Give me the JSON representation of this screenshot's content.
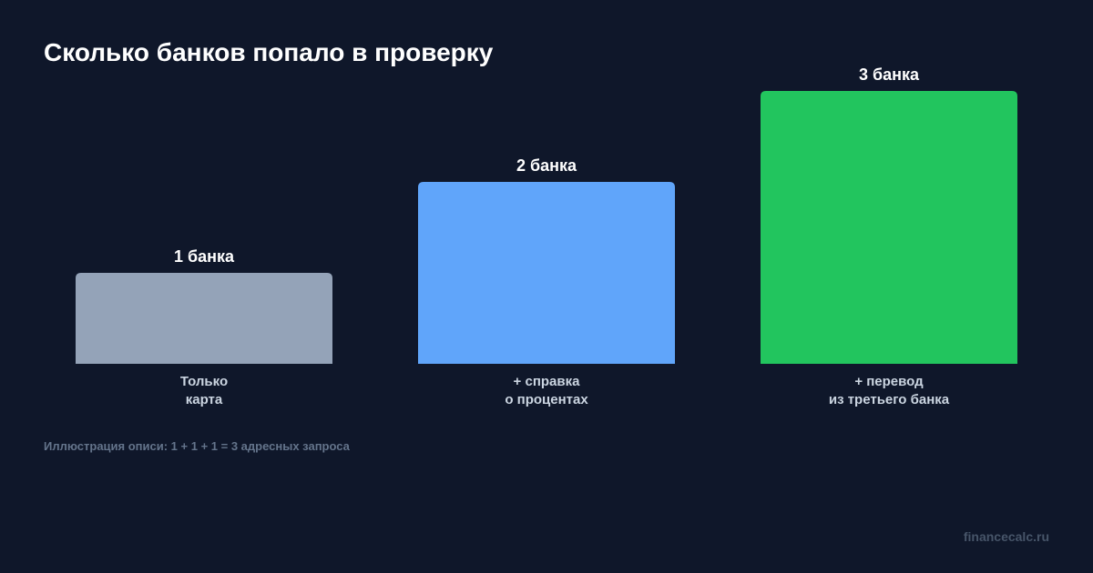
{
  "chart_data": {
    "type": "bar",
    "title": "Сколько банков попало в проверку",
    "categories": [
      [
        "Только",
        "карта"
      ],
      [
        "+ справка",
        "о процентах"
      ],
      [
        "+ перевод",
        "из третьего банка"
      ]
    ],
    "values": [
      1,
      2,
      3
    ],
    "value_labels": [
      "1 банка",
      "2 банка",
      "3 банка"
    ],
    "colors": [
      "#94a3b8",
      "#60a5fa",
      "#22c55e"
    ],
    "ylim": [
      0,
      3
    ],
    "grid": false,
    "legend": "none",
    "xlabel": "",
    "ylabel": ""
  },
  "footnote": "Иллюстрация описи: 1 + 1 + 1 = 3 адресных запроса",
  "watermark": "financecalc.ru",
  "colors": {
    "background": "#0f172a",
    "title": "#ffffff",
    "value_label": "#ffffff",
    "category_label": "#cbd5e1",
    "footnote": "#64748b",
    "watermark": "#475569"
  }
}
